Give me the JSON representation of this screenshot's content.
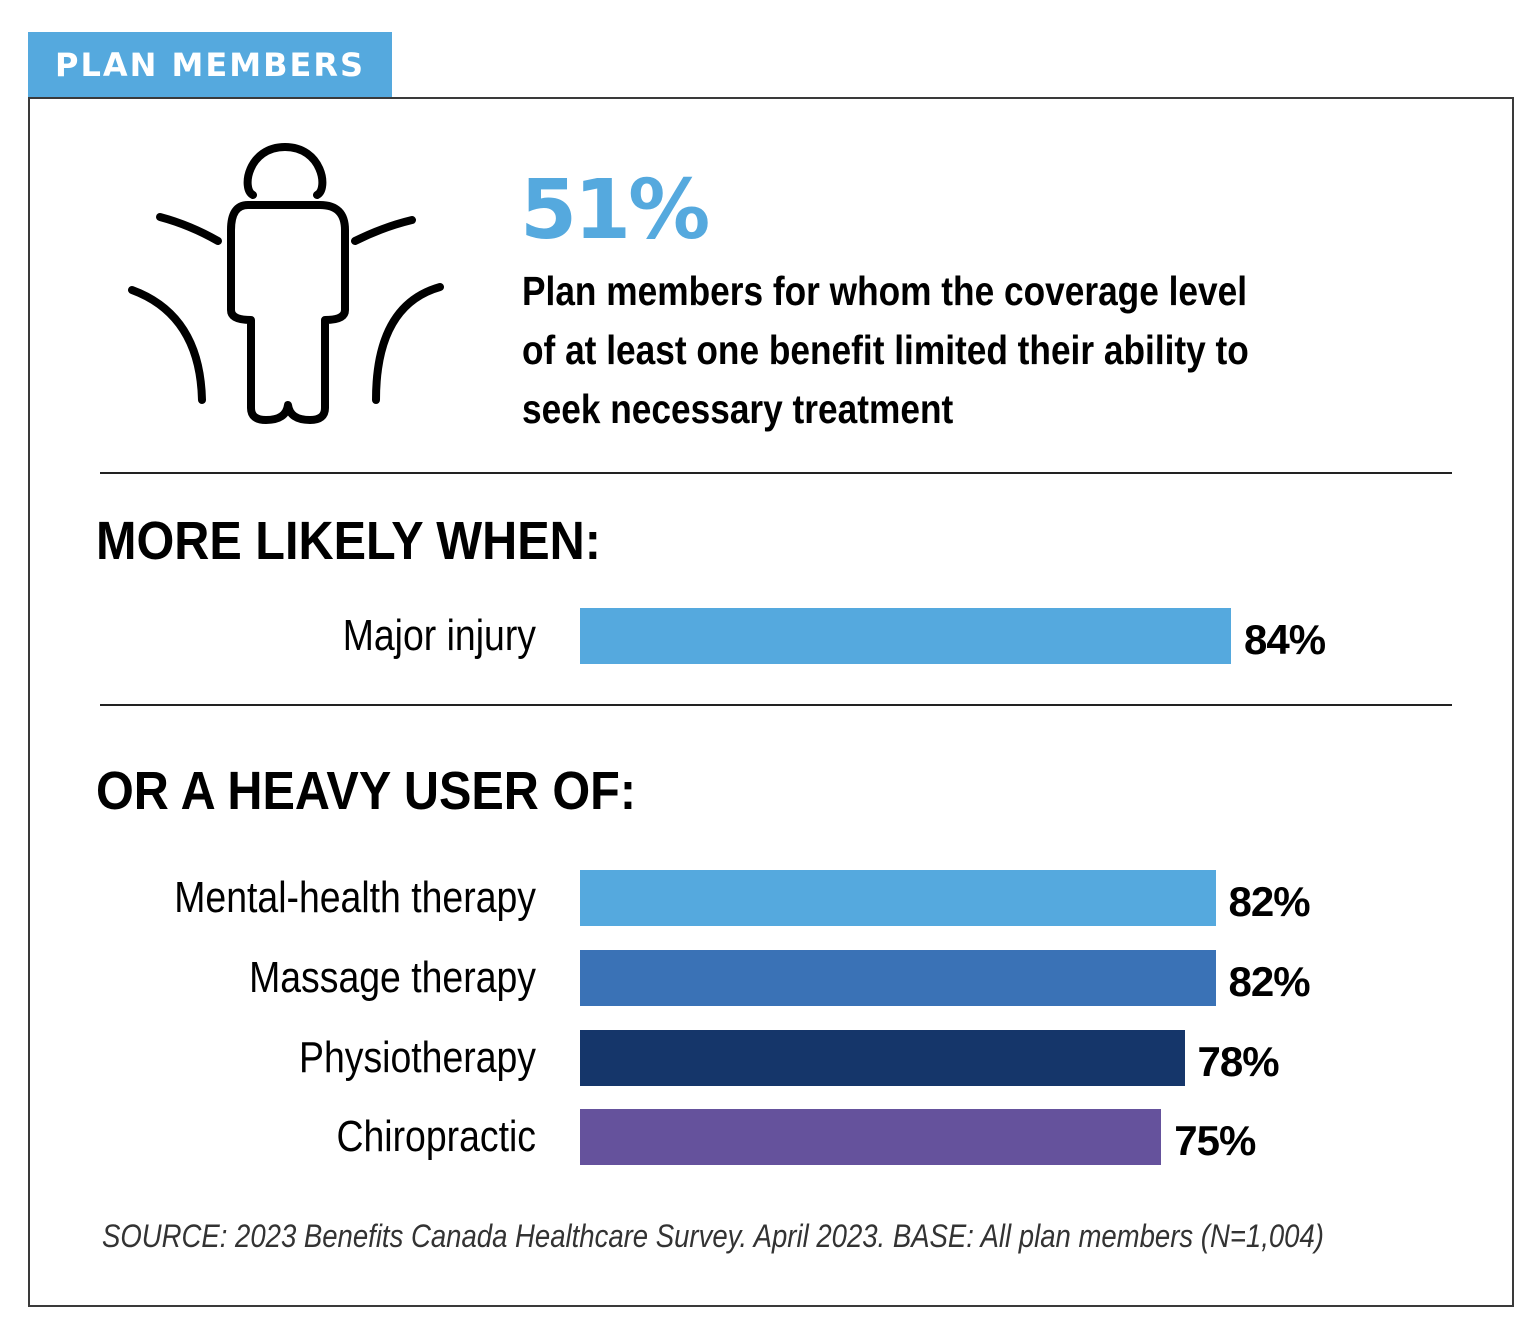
{
  "header": {
    "tab_label": "PLAN MEMBERS"
  },
  "headline": {
    "stat": "51%",
    "description_lines": [
      "Plan members for whom the coverage level",
      "of at least one benefit limited their ability to",
      "seek necessary treatment"
    ]
  },
  "colors": {
    "tab": "#55a9de",
    "light_blue": "#55a9de",
    "medium_blue": "#3a72b6",
    "navy": "#15366a",
    "purple": "#65529c"
  },
  "icons": {
    "person": "person-with-arcs-icon"
  },
  "chart_data": {
    "type": "bar",
    "orientation": "horizontal",
    "xlim": [
      0,
      100
    ],
    "sections": [
      {
        "title": "MORE LIKELY WHEN:",
        "bars": [
          {
            "label": "Major injury",
            "value": 84,
            "value_label": "84%",
            "color": "#55a9de"
          }
        ]
      },
      {
        "title": "OR A HEAVY USER OF:",
        "bars": [
          {
            "label": "Mental-health therapy",
            "value": 82,
            "value_label": "82%",
            "color": "#55a9de"
          },
          {
            "label": "Massage therapy",
            "value": 82,
            "value_label": "82%",
            "color": "#3a72b6"
          },
          {
            "label": "Physiotherapy",
            "value": 78,
            "value_label": "78%",
            "color": "#15366a"
          },
          {
            "label": "Chiropractic",
            "value": 75,
            "value_label": "75%",
            "color": "#65529c"
          }
        ]
      }
    ]
  },
  "source": "SOURCE: 2023 Benefits Canada Healthcare Survey. April 2023. BASE: All plan members (N=1,004)"
}
